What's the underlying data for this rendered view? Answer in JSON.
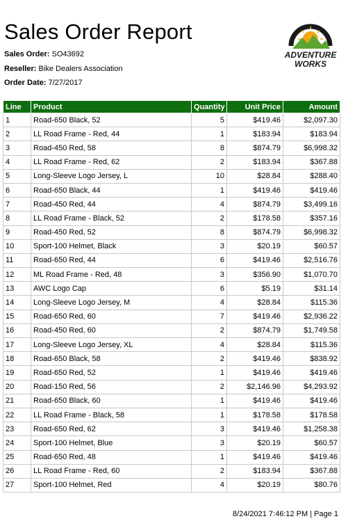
{
  "report": {
    "title": "Sales Order Report",
    "sales_order_label": "Sales Order:",
    "sales_order_value": "SO43692",
    "reseller_label": "Reseller:",
    "reseller_value": "Bike Dealers Association",
    "order_date_label": "Order Date:",
    "order_date_value": "7/27/2017"
  },
  "logo": {
    "line1": "ADVENTURE",
    "line2": "WORKS",
    "colors": {
      "green": "#5ba633",
      "dark": "#1a1a1a",
      "sun": "#f2a516"
    }
  },
  "table": {
    "header_color": "#0f6e0f",
    "columns": [
      "Line",
      "Product",
      "Quantity",
      "Unit Price",
      "Amount"
    ],
    "rows": [
      [
        "1",
        "Road-650 Black, 52",
        "5",
        "$419.46",
        "$2,097.30"
      ],
      [
        "2",
        "LL Road Frame - Red, 44",
        "1",
        "$183.94",
        "$183.94"
      ],
      [
        "3",
        "Road-450 Red, 58",
        "8",
        "$874.79",
        "$6,998.32"
      ],
      [
        "4",
        "LL Road Frame - Red, 62",
        "2",
        "$183.94",
        "$367.88"
      ],
      [
        "5",
        "Long-Sleeve Logo Jersey, L",
        "10",
        "$28.84",
        "$288.40"
      ],
      [
        "6",
        "Road-650 Black, 44",
        "1",
        "$419.46",
        "$419.46"
      ],
      [
        "7",
        "Road-450 Red, 44",
        "4",
        "$874.79",
        "$3,499.16"
      ],
      [
        "8",
        "LL Road Frame - Black, 52",
        "2",
        "$178.58",
        "$357.16"
      ],
      [
        "9",
        "Road-450 Red, 52",
        "8",
        "$874.79",
        "$6,998.32"
      ],
      [
        "10",
        "Sport-100 Helmet, Black",
        "3",
        "$20.19",
        "$60.57"
      ],
      [
        "11",
        "Road-650 Red, 44",
        "6",
        "$419.46",
        "$2,516.76"
      ],
      [
        "12",
        "ML Road Frame - Red, 48",
        "3",
        "$356.90",
        "$1,070.70"
      ],
      [
        "13",
        "AWC Logo Cap",
        "6",
        "$5.19",
        "$31.14"
      ],
      [
        "14",
        "Long-Sleeve Logo Jersey, M",
        "4",
        "$28.84",
        "$115.36"
      ],
      [
        "15",
        "Road-650 Red, 60",
        "7",
        "$419.46",
        "$2,936.22"
      ],
      [
        "16",
        "Road-450 Red, 60",
        "2",
        "$874.79",
        "$1,749.58"
      ],
      [
        "17",
        "Long-Sleeve Logo Jersey, XL",
        "4",
        "$28.84",
        "$115.36"
      ],
      [
        "18",
        "Road-650 Black, 58",
        "2",
        "$419.46",
        "$838.92"
      ],
      [
        "19",
        "Road-650 Red, 52",
        "1",
        "$419.46",
        "$419.46"
      ],
      [
        "20",
        "Road-150 Red, 56",
        "2",
        "$2,146.96",
        "$4,293.92"
      ],
      [
        "21",
        "Road-650 Black, 60",
        "1",
        "$419.46",
        "$419.46"
      ],
      [
        "22",
        "LL Road Frame - Black, 58",
        "1",
        "$178.58",
        "$178.58"
      ],
      [
        "23",
        "Road-650 Red, 62",
        "3",
        "$419.46",
        "$1,258.38"
      ],
      [
        "24",
        "Sport-100 Helmet, Blue",
        "3",
        "$20.19",
        "$60.57"
      ],
      [
        "25",
        "Road-650 Red, 48",
        "1",
        "$419.46",
        "$419.46"
      ],
      [
        "26",
        "LL Road Frame - Red, 60",
        "2",
        "$183.94",
        "$367.88"
      ],
      [
        "27",
        "Sport-100 Helmet, Red",
        "4",
        "$20.19",
        "$80.76"
      ]
    ]
  },
  "footer": {
    "text": "8/24/2021 7:46:12 PM | Page 1"
  }
}
